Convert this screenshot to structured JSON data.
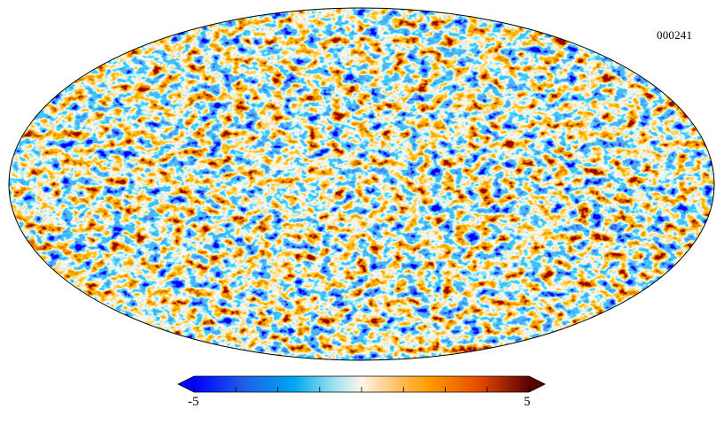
{
  "map": {
    "id_label": "000241",
    "projection": "mollweide",
    "background": "#ffffff",
    "outline_color": "#000000"
  },
  "colorbar": {
    "min_label": "-5",
    "max_label": "5",
    "min": -5,
    "max": 5,
    "extend": "both",
    "tick_count": 9,
    "stops": [
      {
        "pos": 0.0,
        "color": "#0000ff"
      },
      {
        "pos": 0.15,
        "color": "#1f5fe8"
      },
      {
        "pos": 0.3,
        "color": "#00a8f0"
      },
      {
        "pos": 0.42,
        "color": "#9fe3ef"
      },
      {
        "pos": 0.5,
        "color": "#fff5e8"
      },
      {
        "pos": 0.6,
        "color": "#ffc46b"
      },
      {
        "pos": 0.7,
        "color": "#ff9c00"
      },
      {
        "pos": 0.85,
        "color": "#e84a00"
      },
      {
        "pos": 1.0,
        "color": "#5a0000"
      }
    ]
  }
}
